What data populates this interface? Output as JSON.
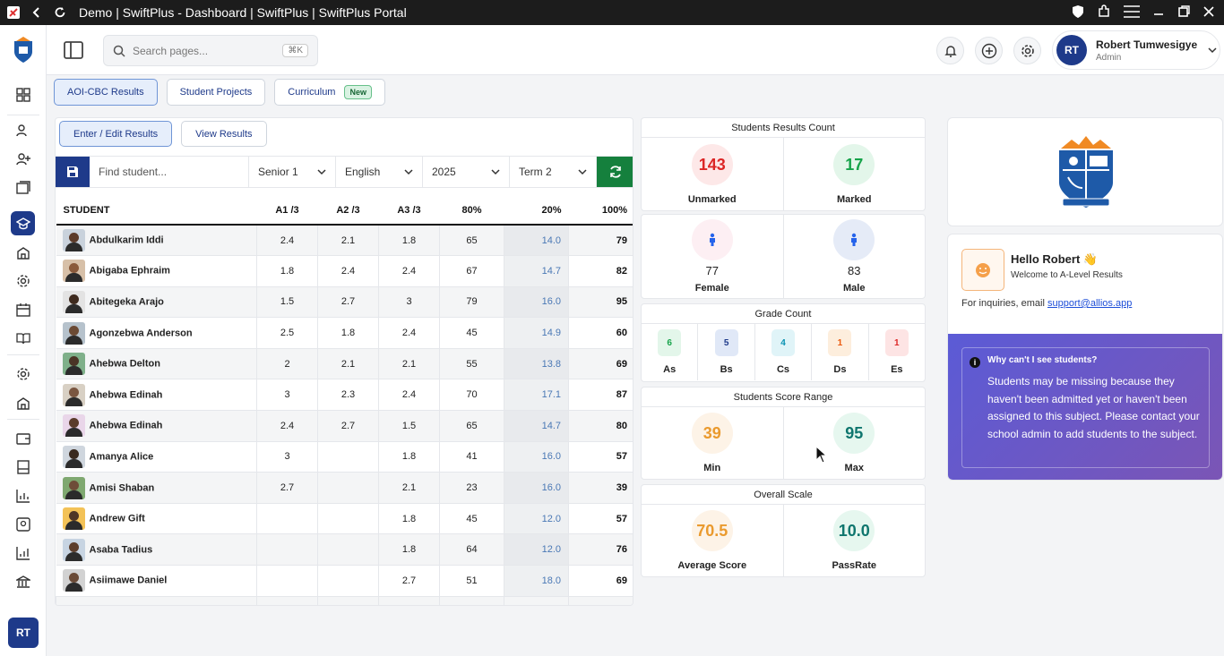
{
  "window": {
    "title": "Demo | SwiftPlus - Dashboard | SwiftPlus | SwiftPlus Portal"
  },
  "header": {
    "search_placeholder": "Search pages...",
    "search_shortcut": "⌘K",
    "user_name": "Robert Tumwesigye",
    "user_role": "Admin",
    "user_initials": "RT"
  },
  "rail": {
    "initials": "RT"
  },
  "tabs": [
    {
      "label": "AOI-CBC Results"
    },
    {
      "label": "Student Projects"
    },
    {
      "label": "Curriculum",
      "badge": "New"
    }
  ],
  "subtabs": {
    "enter": "Enter / Edit Results",
    "view": "View Results"
  },
  "filters": {
    "search_placeholder": "Find student...",
    "level": "Senior 1",
    "subject": "English",
    "year": "2025",
    "term": "Term 2"
  },
  "table": {
    "headers": [
      "STUDENT",
      "A1 /3",
      "A2 /3",
      "A3 /3",
      "80%",
      "20%",
      "100%"
    ],
    "rows": [
      {
        "name": "Abdulkarim Iddi",
        "a1": "2.4",
        "a2": "2.1",
        "a3": "1.8",
        "p80": "65",
        "p20": "14.0",
        "total": "79"
      },
      {
        "name": "Abigaba Ephraim",
        "a1": "1.8",
        "a2": "2.4",
        "a3": "2.4",
        "p80": "67",
        "p20": "14.7",
        "total": "82"
      },
      {
        "name": "Abitegeka Arajo",
        "a1": "1.5",
        "a2": "2.7",
        "a3": "3",
        "p80": "79",
        "p20": "16.0",
        "total": "95"
      },
      {
        "name": "Agonzebwa Anderson",
        "a1": "2.5",
        "a2": "1.8",
        "a3": "2.4",
        "p80": "45",
        "p20": "14.9",
        "total": "60"
      },
      {
        "name": "Ahebwa Delton",
        "a1": "2",
        "a2": "2.1",
        "a3": "2.1",
        "p80": "55",
        "p20": "13.8",
        "total": "69"
      },
      {
        "name": "Ahebwa Edinah",
        "a1": "3",
        "a2": "2.3",
        "a3": "2.4",
        "p80": "70",
        "p20": "17.1",
        "total": "87"
      },
      {
        "name": "Ahebwa Edinah",
        "a1": "2.4",
        "a2": "2.7",
        "a3": "1.5",
        "p80": "65",
        "p20": "14.7",
        "total": "80"
      },
      {
        "name": "Amanya Alice",
        "a1": "3",
        "a2": "",
        "a3": "1.8",
        "p80": "41",
        "p20": "16.0",
        "total": "57"
      },
      {
        "name": "Amisi Shaban",
        "a1": "2.7",
        "a2": "",
        "a3": "2.1",
        "p80": "23",
        "p20": "16.0",
        "total": "39"
      },
      {
        "name": "Andrew Gift",
        "a1": "",
        "a2": "",
        "a3": "1.8",
        "p80": "45",
        "p20": "12.0",
        "total": "57"
      },
      {
        "name": "Asaba Tadius",
        "a1": "",
        "a2": "",
        "a3": "1.8",
        "p80": "64",
        "p20": "12.0",
        "total": "76"
      },
      {
        "name": "Asiimawe Daniel",
        "a1": "",
        "a2": "",
        "a3": "2.7",
        "p80": "51",
        "p20": "18.0",
        "total": "69"
      }
    ]
  },
  "results_count": {
    "title": "Students Results Count",
    "unmarked": "143",
    "unmarked_label": "Unmarked",
    "marked": "17",
    "marked_label": "Marked"
  },
  "gender": {
    "female": "77",
    "female_label": "Female",
    "male": "83",
    "male_label": "Male"
  },
  "grade_count": {
    "title": "Grade Count",
    "grades": [
      {
        "value": "6",
        "label": "As",
        "color": "#16a34a",
        "bg": "#e3f6ea"
      },
      {
        "value": "5",
        "label": "Bs",
        "color": "#1e3a8a",
        "bg": "#e0e8f7"
      },
      {
        "value": "4",
        "label": "Cs",
        "color": "#0891b2",
        "bg": "#e0f4f8"
      },
      {
        "value": "1",
        "label": "Ds",
        "color": "#ea580c",
        "bg": "#fdeedd"
      },
      {
        "value": "1",
        "label": "Es",
        "color": "#dc2626",
        "bg": "#fde4e4"
      }
    ]
  },
  "score_range": {
    "title": "Students Score Range",
    "min": "39",
    "min_label": "Min",
    "max": "95",
    "max_label": "Max"
  },
  "overall": {
    "title": "Overall Scale",
    "average": "70.5",
    "average_label": "Average Score",
    "passrate": "10.0",
    "passrate_label": "PassRate"
  },
  "welcome": {
    "greeting": "Hello Robert 👋",
    "subtitle": "Welcome to A-Level Results",
    "inquiry_text": "For inquiries, email",
    "email": "support@allios.app",
    "notice_title": "Why can't I see students?",
    "notice_text": "Students may be missing because they haven't been admitted yet or haven't been assigned to this subject. Please contact your school admin to add students to the subject."
  },
  "colors": {
    "brand": "#1e3a8a",
    "accent_green": "#15803d",
    "purple": "#6a57c8"
  }
}
